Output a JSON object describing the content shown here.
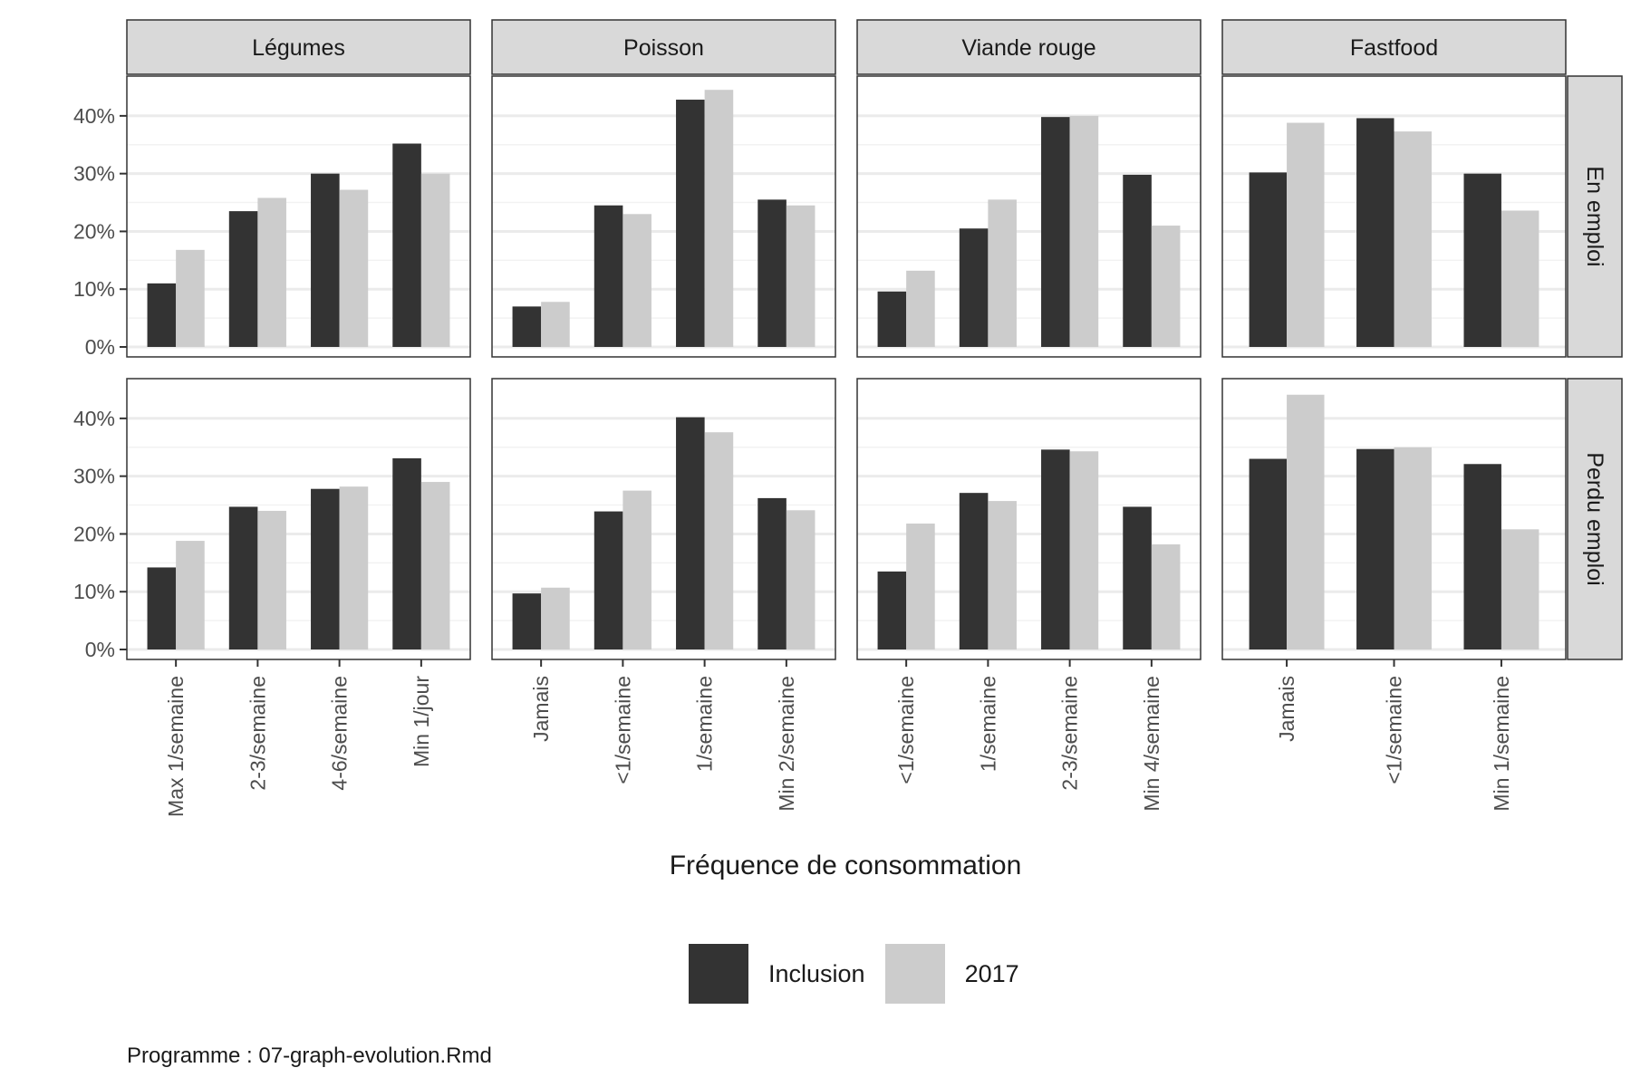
{
  "chart_data": {
    "type": "bar",
    "xlabel": "Fréquence de consommation",
    "ylabel": "",
    "ylim": [
      0,
      45
    ],
    "yticks": [
      0,
      10,
      20,
      30,
      40
    ],
    "ytick_labels": [
      "0%",
      "10%",
      "20%",
      "30%",
      "40%"
    ],
    "grid": true,
    "legend_position": "bottom",
    "series_names": [
      "Inclusion",
      "2017"
    ],
    "colors": {
      "Inclusion": "#333333",
      "2017": "#cccccc"
    },
    "rows": [
      "En emploi",
      "Perdu emploi"
    ],
    "columns": [
      {
        "name": "Légumes",
        "categories": [
          "Max 1/semaine",
          "2-3/semaine",
          "4-6/semaine",
          "Min 1/jour"
        ]
      },
      {
        "name": "Poisson",
        "categories": [
          "Jamais",
          "<1/semaine",
          "1/semaine",
          "Min 2/semaine"
        ]
      },
      {
        "name": "Viande rouge",
        "categories": [
          "<1/semaine",
          "1/semaine",
          "2-3/semaine",
          "Min 4/semaine"
        ]
      },
      {
        "name": "Fastfood",
        "categories": [
          "Jamais",
          "<1/semaine",
          "Min 1/semaine"
        ]
      }
    ],
    "panels": [
      {
        "row": "En emploi",
        "column": "Légumes",
        "series": [
          {
            "name": "Inclusion",
            "values": [
              11.0,
              23.5,
              30.0,
              35.2
            ]
          },
          {
            "name": "2017",
            "values": [
              16.8,
              25.8,
              27.2,
              30.0
            ]
          }
        ]
      },
      {
        "row": "En emploi",
        "column": "Poisson",
        "series": [
          {
            "name": "Inclusion",
            "values": [
              7.0,
              24.5,
              42.8,
              25.5
            ]
          },
          {
            "name": "2017",
            "values": [
              7.8,
              23.0,
              44.5,
              24.5
            ]
          }
        ]
      },
      {
        "row": "En emploi",
        "column": "Viande rouge",
        "series": [
          {
            "name": "Inclusion",
            "values": [
              9.6,
              20.5,
              39.8,
              29.8
            ]
          },
          {
            "name": "2017",
            "values": [
              13.2,
              25.5,
              40.0,
              21.0
            ]
          }
        ]
      },
      {
        "row": "En emploi",
        "column": "Fastfood",
        "series": [
          {
            "name": "Inclusion",
            "values": [
              30.2,
              39.6,
              30.0
            ]
          },
          {
            "name": "2017",
            "values": [
              38.8,
              37.3,
              23.6
            ]
          }
        ]
      },
      {
        "row": "Perdu emploi",
        "column": "Légumes",
        "series": [
          {
            "name": "Inclusion",
            "values": [
              14.2,
              24.7,
              27.8,
              33.1
            ]
          },
          {
            "name": "2017",
            "values": [
              18.8,
              24.0,
              28.2,
              29.0
            ]
          }
        ]
      },
      {
        "row": "Perdu emploi",
        "column": "Poisson",
        "series": [
          {
            "name": "Inclusion",
            "values": [
              9.7,
              23.9,
              40.2,
              26.2
            ]
          },
          {
            "name": "2017",
            "values": [
              10.7,
              27.5,
              37.6,
              24.1
            ]
          }
        ]
      },
      {
        "row": "Perdu emploi",
        "column": "Viande rouge",
        "series": [
          {
            "name": "Inclusion",
            "values": [
              13.5,
              27.1,
              34.6,
              24.7
            ]
          },
          {
            "name": "2017",
            "values": [
              21.8,
              25.7,
              34.3,
              18.2
            ]
          }
        ]
      },
      {
        "row": "Perdu emploi",
        "column": "Fastfood",
        "series": [
          {
            "name": "Inclusion",
            "values": [
              33.0,
              34.7,
              32.1
            ]
          },
          {
            "name": "2017",
            "values": [
              44.1,
              35.0,
              20.8
            ]
          }
        ]
      }
    ]
  },
  "legend": {
    "items": [
      "Inclusion",
      "2017"
    ]
  },
  "caption": "Programme : 07-graph-evolution.Rmd"
}
